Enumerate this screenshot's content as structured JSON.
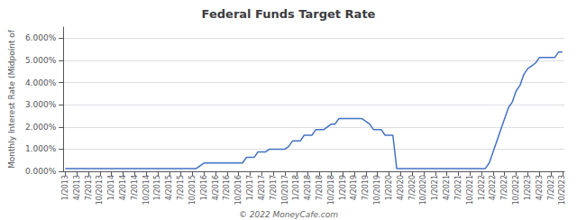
{
  "chart_data": {
    "type": "line",
    "title": "Federal Funds Target Rate",
    "y_label": "Monthly Interest Rate (Midpoint of",
    "annotations": [
      "© 2022 MoneyCafe.com"
    ],
    "color": "#4472C4",
    "grid": true,
    "ylim": [
      0.0,
      0.065
    ],
    "yticks": [
      {
        "value": 0.0,
        "label": "0.000%"
      },
      {
        "value": 0.01,
        "label": "1.000%"
      },
      {
        "value": 0.02,
        "label": "2.000%"
      },
      {
        "value": 0.03,
        "label": "3.000%"
      },
      {
        "value": 0.04,
        "label": "4.000%"
      },
      {
        "value": 0.05,
        "label": "5.000%"
      },
      {
        "value": 0.06,
        "label": "6.000%"
      }
    ],
    "categories": [
      "1/2013",
      null,
      null,
      "4/2013",
      null,
      null,
      "7/2013",
      null,
      null,
      "10/2013",
      null,
      null,
      "1/2014",
      null,
      null,
      "4/2014",
      null,
      null,
      "7/2014",
      null,
      null,
      "10/2014",
      null,
      null,
      "1/2015",
      null,
      null,
      "4/2015",
      null,
      null,
      "7/2015",
      null,
      null,
      "10/2015",
      null,
      null,
      "1/2016",
      null,
      null,
      "4/2016",
      null,
      null,
      "7/2016",
      null,
      null,
      "10/2016",
      null,
      null,
      "1/2017",
      null,
      null,
      "4/2017",
      null,
      null,
      "7/2017",
      null,
      null,
      "10/2017",
      null,
      null,
      "1/2018",
      null,
      null,
      "4/2018",
      null,
      null,
      "7/2018",
      null,
      null,
      "10/2018",
      null,
      null,
      "1/2019",
      null,
      null,
      "4/2019",
      null,
      null,
      "7/2019",
      null,
      null,
      "10/2019",
      null,
      null,
      "1/2020",
      null,
      null,
      "4/2020",
      null,
      null,
      "7/2020",
      null,
      null,
      "10/2020",
      null,
      null,
      "1/2021",
      null,
      null,
      "4/2021",
      null,
      null,
      "7/2021",
      null,
      null,
      "10/2021",
      null,
      null,
      "1/2022",
      null,
      null,
      "4/2022",
      null,
      null,
      "7/2022",
      null,
      null,
      "10/2022",
      null,
      null,
      "1/2023",
      null,
      null,
      "4/2023",
      null,
      null,
      "7/2023",
      null,
      null,
      "10/2023"
    ],
    "values": [
      0.00125,
      0.00125,
      0.00125,
      0.00125,
      0.00125,
      0.00125,
      0.00125,
      0.00125,
      0.00125,
      0.00125,
      0.00125,
      0.00125,
      0.00125,
      0.00125,
      0.00125,
      0.00125,
      0.00125,
      0.00125,
      0.00125,
      0.00125,
      0.00125,
      0.00125,
      0.00125,
      0.00125,
      0.00125,
      0.00125,
      0.00125,
      0.00125,
      0.00125,
      0.00125,
      0.00125,
      0.00125,
      0.00125,
      0.00125,
      0.00125,
      0.0025,
      0.00375,
      0.00375,
      0.00375,
      0.00375,
      0.00375,
      0.00375,
      0.00375,
      0.00375,
      0.00375,
      0.00375,
      0.00375,
      0.00625,
      0.00625,
      0.00625,
      0.00875,
      0.00875,
      0.00875,
      0.01,
      0.01,
      0.01,
      0.01,
      0.01,
      0.01125,
      0.01375,
      0.01375,
      0.01375,
      0.01625,
      0.01625,
      0.01625,
      0.01875,
      0.01875,
      0.01875,
      0.02,
      0.02125,
      0.02125,
      0.02375,
      0.02375,
      0.02375,
      0.02375,
      0.02375,
      0.02375,
      0.02375,
      0.0225,
      0.02125,
      0.01875,
      0.01875,
      0.01875,
      0.01625,
      0.01625,
      0.01625,
      0.00125,
      0.00125,
      0.00125,
      0.00125,
      0.00125,
      0.00125,
      0.00125,
      0.00125,
      0.00125,
      0.00125,
      0.00125,
      0.00125,
      0.00125,
      0.00125,
      0.00125,
      0.00125,
      0.00125,
      0.00125,
      0.00125,
      0.00125,
      0.00125,
      0.00125,
      0.00125,
      0.00125,
      0.00375,
      0.00875,
      0.01375,
      0.01875,
      0.02375,
      0.02875,
      0.03125,
      0.03625,
      0.03875,
      0.04375,
      0.04625,
      0.0475,
      0.04875,
      0.05125,
      0.05125,
      0.05125,
      0.05125,
      0.05125,
      0.05375,
      0.05375
    ]
  }
}
